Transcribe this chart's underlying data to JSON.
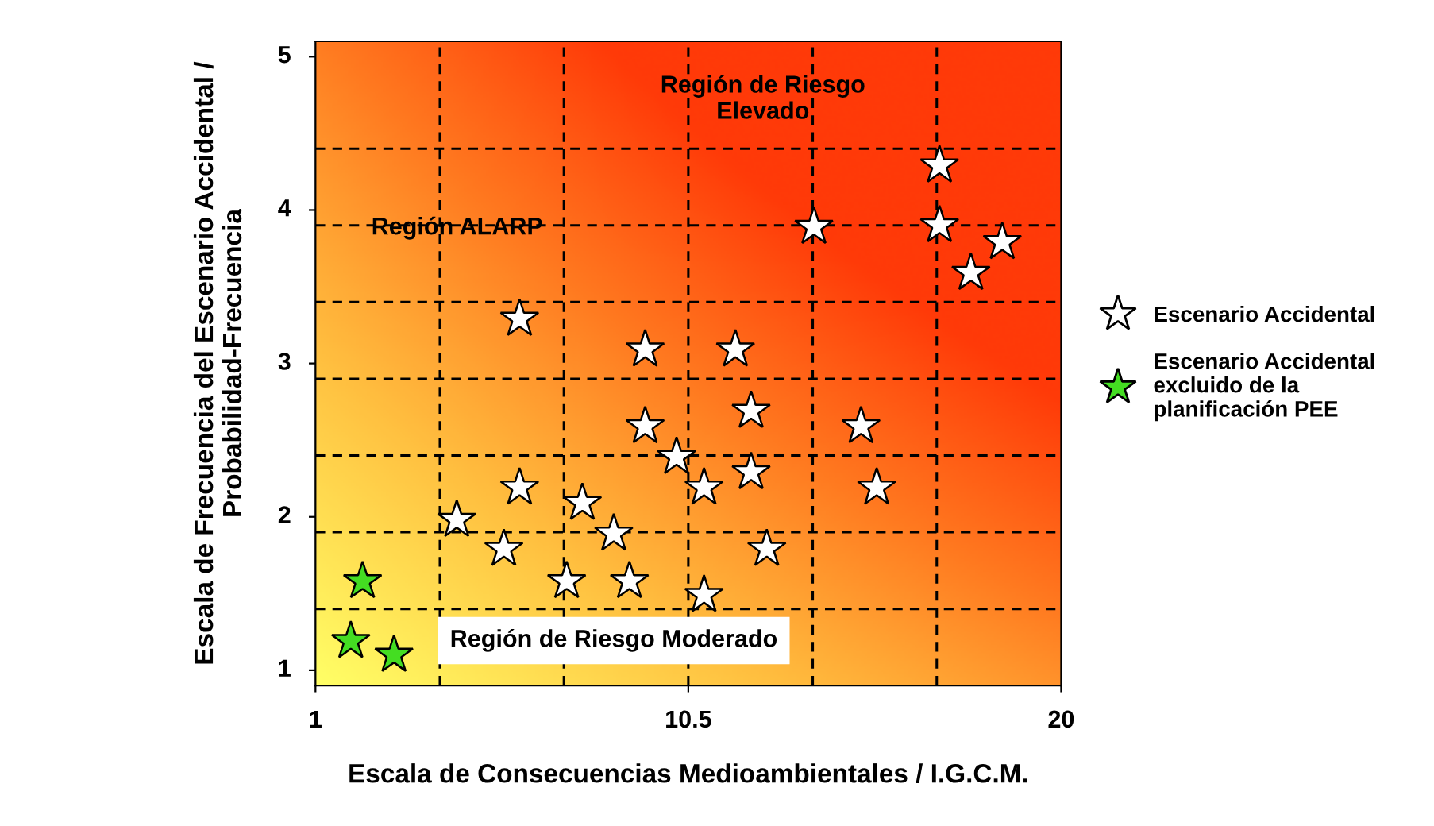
{
  "chart_data": {
    "type": "scatter",
    "xlabel": "Escala de Consecuencias Medioambientales / I.G.C.M.",
    "ylabel": "Escala de Frecuencia del Escenario Accidental /\nProbabilidad-Frecuencia",
    "xlim": [
      1,
      20
    ],
    "xticks": [
      1,
      10.5,
      20
    ],
    "ylim": [
      0.9,
      5.1
    ],
    "yticks": [
      1,
      2,
      3,
      4,
      5
    ],
    "marker": "star",
    "legend": "right",
    "grid": false,
    "series": [
      {
        "name": "Escenario Accidental",
        "color": "#ffffff",
        "x": [
          16.9,
          13.7,
          16.9,
          18.5,
          17.7,
          6.2,
          9.4,
          11.7,
          12.1,
          9.4,
          14.9,
          10.2,
          6.2,
          10.9,
          12.1,
          15.3,
          4.6,
          7.8,
          8.6,
          5.8,
          12.5,
          7.4,
          9.0,
          10.9
        ],
        "values": [
          4.29,
          3.89,
          3.9,
          3.79,
          3.59,
          3.29,
          3.09,
          3.09,
          2.69,
          2.59,
          2.59,
          2.39,
          2.19,
          2.19,
          2.29,
          2.19,
          1.98,
          2.09,
          1.89,
          1.79,
          1.79,
          1.58,
          1.58,
          1.49
        ]
      },
      {
        "name": "Escenario Accidental\nexcluido de la\nplanificación PEE",
        "color": "#44dd22",
        "x": [
          2.2,
          1.9,
          3.0
        ],
        "values": [
          1.58,
          1.19,
          1.1
        ]
      }
    ],
    "ref_lines": [
      {
        "axis": "x",
        "value": 4.17,
        "color": "#000000",
        "line_style": "dashed"
      },
      {
        "axis": "x",
        "value": 7.33,
        "color": "#000000",
        "line_style": "dashed"
      },
      {
        "axis": "x",
        "value": 10.5,
        "color": "#000000",
        "line_style": "dashed"
      },
      {
        "axis": "x",
        "value": 13.67,
        "color": "#000000",
        "line_style": "dashed"
      },
      {
        "axis": "x",
        "value": 16.83,
        "color": "#000000",
        "line_style": "dashed"
      },
      {
        "axis": "y",
        "value": 1.4,
        "color": "#000000",
        "line_style": "dashed"
      },
      {
        "axis": "y",
        "value": 1.9,
        "color": "#000000",
        "line_style": "dashed"
      },
      {
        "axis": "y",
        "value": 2.4,
        "color": "#000000",
        "line_style": "dashed"
      },
      {
        "axis": "y",
        "value": 2.9,
        "color": "#000000",
        "line_style": "dashed"
      },
      {
        "axis": "y",
        "value": 3.4,
        "color": "#000000",
        "line_style": "dashed"
      },
      {
        "axis": "y",
        "value": 3.9,
        "color": "#000000",
        "line_style": "dashed"
      },
      {
        "axis": "y",
        "value": 4.4,
        "color": "#000000",
        "line_style": "dashed"
      }
    ],
    "annotations": [
      "Región de Riesgo\nElevado",
      "Región ALARP",
      "Región de Riesgo Moderado"
    ]
  }
}
